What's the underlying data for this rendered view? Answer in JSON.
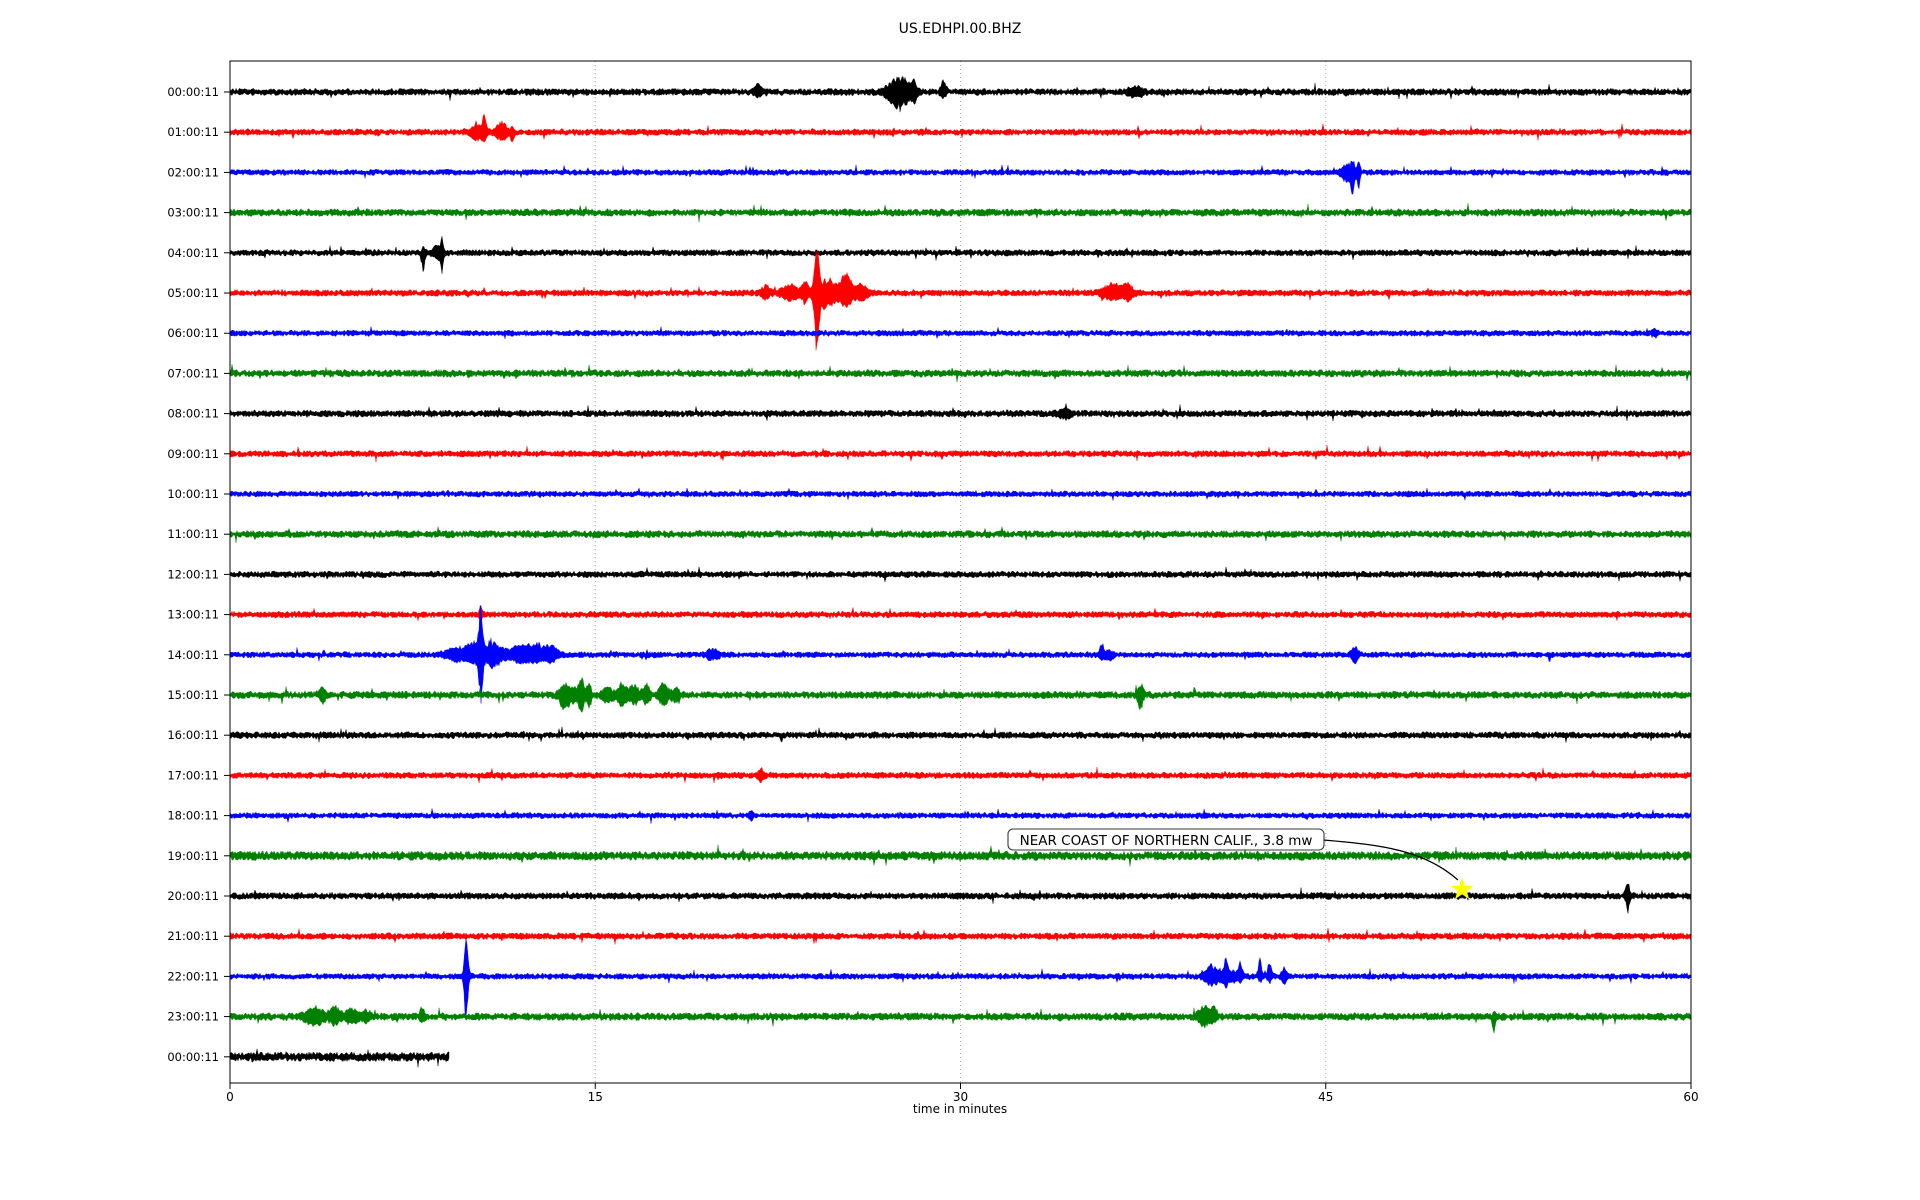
{
  "page": {
    "title": "US.EDHPI.00.BHZ"
  },
  "chart_data": {
    "type": "line",
    "subtype": "seismogram-dayplot",
    "title": "US.EDHPI.00.BHZ",
    "xlabel": "time in minutes",
    "xlim": [
      0,
      60
    ],
    "x_ticks": [
      0,
      15,
      30,
      45,
      60
    ],
    "grid_minutes": [
      15,
      30,
      45
    ],
    "grid_on": true,
    "grid_color": "#aaaaaa",
    "trace_color_cycle": [
      "#000000",
      "#ff0000",
      "#0000ff",
      "#008000"
    ],
    "annotation": {
      "text": "NEAR COAST OF NORTHERN CALIF., 3.8 mw",
      "row_index": 20,
      "row_label": "20:00:11",
      "minute": 50.6,
      "marker": "star",
      "marker_color": "#ffff00"
    },
    "rows": [
      {
        "label": "00:00:11",
        "start": 0,
        "end": 60,
        "n": 3.4,
        "events": [
          {
            "t": 21.7,
            "d": 0.15,
            "u": 7,
            "dn": 5
          },
          {
            "t": 27.5,
            "d": 0.5,
            "u": 16,
            "dn": 17
          },
          {
            "t": 28.1,
            "d": 0.1,
            "u": 10,
            "dn": 8
          },
          {
            "t": 29.3,
            "d": 0.12,
            "u": 13,
            "dn": 6
          },
          {
            "t": 37.2,
            "d": 0.3,
            "u": 5,
            "dn": 5
          }
        ]
      },
      {
        "label": "01:00:11",
        "start": 0,
        "end": 60,
        "n": 3.2,
        "events": [
          {
            "t": 10.2,
            "d": 0.35,
            "u": 8,
            "dn": 7
          },
          {
            "t": 10.45,
            "d": 0.08,
            "u": 14,
            "dn": 5
          },
          {
            "t": 11.15,
            "d": 0.25,
            "u": 10,
            "dn": 8
          },
          {
            "t": 11.6,
            "d": 0.07,
            "u": 4,
            "dn": 12
          }
        ]
      },
      {
        "label": "02:00:11",
        "start": 0,
        "end": 60,
        "n": 3.0,
        "events": [
          {
            "t": 45.9,
            "d": 0.3,
            "u": 7,
            "dn": 9
          },
          {
            "t": 46.1,
            "d": 0.08,
            "u": 6,
            "dn": 16
          },
          {
            "t": 46.35,
            "d": 0.07,
            "u": 10,
            "dn": 16
          }
        ]
      },
      {
        "label": "03:00:11",
        "start": 0,
        "end": 60,
        "n": 3.6,
        "events": []
      },
      {
        "label": "04:00:11",
        "start": 0,
        "end": 60,
        "n": 3.2,
        "events": [
          {
            "t": 7.95,
            "d": 0.07,
            "u": 5,
            "dn": 19
          },
          {
            "t": 8.5,
            "d": 0.25,
            "u": 6,
            "dn": 5
          },
          {
            "t": 8.7,
            "d": 0.07,
            "u": 11,
            "dn": 17
          }
        ]
      },
      {
        "label": "05:00:11",
        "start": 0,
        "end": 60,
        "n": 3.2,
        "events": [
          {
            "t": 22.0,
            "d": 0.2,
            "u": 7,
            "dn": 6
          },
          {
            "t": 23.0,
            "d": 0.4,
            "u": 8,
            "dn": 7
          },
          {
            "t": 23.6,
            "d": 0.15,
            "u": 12,
            "dn": 8
          },
          {
            "t": 24.1,
            "d": 0.12,
            "u": 44,
            "dn": 52
          },
          {
            "t": 24.5,
            "d": 0.5,
            "u": 12,
            "dn": 16
          },
          {
            "t": 25.3,
            "d": 0.25,
            "u": 20,
            "dn": 14
          },
          {
            "t": 25.9,
            "d": 0.3,
            "u": 8,
            "dn": 8
          },
          {
            "t": 36.3,
            "d": 0.5,
            "u": 9,
            "dn": 7
          },
          {
            "t": 36.9,
            "d": 0.2,
            "u": 8,
            "dn": 6
          }
        ]
      },
      {
        "label": "06:00:11",
        "start": 0,
        "end": 60,
        "n": 3.0,
        "events": [
          {
            "t": 58.5,
            "d": 0.1,
            "u": 4,
            "dn": 4
          }
        ]
      },
      {
        "label": "07:00:11",
        "start": 0,
        "end": 60,
        "n": 3.6,
        "events": []
      },
      {
        "label": "08:00:11",
        "start": 0,
        "end": 60,
        "n": 3.4,
        "events": [
          {
            "t": 34.3,
            "d": 0.3,
            "u": 4,
            "dn": 4
          }
        ]
      },
      {
        "label": "09:00:11",
        "start": 0,
        "end": 60,
        "n": 3.2,
        "events": []
      },
      {
        "label": "10:00:11",
        "start": 0,
        "end": 60,
        "n": 3.0,
        "events": []
      },
      {
        "label": "11:00:11",
        "start": 0,
        "end": 60,
        "n": 3.6,
        "events": []
      },
      {
        "label": "12:00:11",
        "start": 0,
        "end": 60,
        "n": 3.2,
        "events": []
      },
      {
        "label": "13:00:11",
        "start": 0,
        "end": 60,
        "n": 3.2,
        "events": [
          {
            "t": 10.3,
            "d": 0.07,
            "u": 9,
            "dn": 4
          }
        ]
      },
      {
        "label": "14:00:11",
        "start": 0,
        "end": 60,
        "n": 3.0,
        "events": [
          {
            "t": 9.3,
            "d": 0.5,
            "u": 7,
            "dn": 6
          },
          {
            "t": 10.0,
            "d": 0.3,
            "u": 12,
            "dn": 8
          },
          {
            "t": 10.3,
            "d": 0.1,
            "u": 50,
            "dn": 46
          },
          {
            "t": 10.8,
            "d": 0.4,
            "u": 12,
            "dn": 12
          },
          {
            "t": 11.8,
            "d": 0.5,
            "u": 6,
            "dn": 6
          },
          {
            "t": 12.5,
            "d": 0.5,
            "u": 10,
            "dn": 7
          },
          {
            "t": 13.2,
            "d": 0.3,
            "u": 8,
            "dn": 6
          },
          {
            "t": 19.8,
            "d": 0.3,
            "u": 5,
            "dn": 4
          },
          {
            "t": 35.8,
            "d": 0.1,
            "u": 11,
            "dn": 5
          },
          {
            "t": 36.1,
            "d": 0.15,
            "u": 5,
            "dn": 7
          },
          {
            "t": 46.2,
            "d": 0.15,
            "u": 9,
            "dn": 8
          }
        ]
      },
      {
        "label": "15:00:11",
        "start": 0,
        "end": 60,
        "n": 3.6,
        "events": [
          {
            "t": 3.8,
            "d": 0.15,
            "u": 7,
            "dn": 7
          },
          {
            "t": 13.7,
            "d": 0.2,
            "u": 10,
            "dn": 12
          },
          {
            "t": 14.1,
            "d": 0.3,
            "u": 8,
            "dn": 8
          },
          {
            "t": 14.45,
            "d": 0.12,
            "u": 16,
            "dn": 18
          },
          {
            "t": 14.75,
            "d": 0.1,
            "u": 12,
            "dn": 14
          },
          {
            "t": 15.5,
            "d": 0.3,
            "u": 6,
            "dn": 6
          },
          {
            "t": 16.1,
            "d": 0.2,
            "u": 10,
            "dn": 12
          },
          {
            "t": 16.6,
            "d": 0.3,
            "u": 8,
            "dn": 8
          },
          {
            "t": 17.1,
            "d": 0.15,
            "u": 10,
            "dn": 10
          },
          {
            "t": 17.8,
            "d": 0.2,
            "u": 12,
            "dn": 10
          },
          {
            "t": 18.3,
            "d": 0.2,
            "u": 6,
            "dn": 6
          },
          {
            "t": 37.4,
            "d": 0.12,
            "u": 12,
            "dn": 14
          }
        ]
      },
      {
        "label": "16:00:11",
        "start": 0,
        "end": 60,
        "n": 3.3,
        "events": []
      },
      {
        "label": "17:00:11",
        "start": 0,
        "end": 60,
        "n": 3.2,
        "events": [
          {
            "t": 21.8,
            "d": 0.15,
            "u": 6,
            "dn": 5
          }
        ]
      },
      {
        "label": "18:00:11",
        "start": 0,
        "end": 60,
        "n": 3.0,
        "events": [
          {
            "t": 21.4,
            "d": 0.1,
            "u": 5,
            "dn": 4
          }
        ]
      },
      {
        "label": "19:00:11",
        "start": 0,
        "end": 60,
        "n": 4.4,
        "events": []
      },
      {
        "label": "20:00:11",
        "start": 0,
        "end": 60,
        "n": 3.4,
        "events": [
          {
            "t": 57.4,
            "d": 0.1,
            "u": 13,
            "dn": 14
          }
        ]
      },
      {
        "label": "21:00:11",
        "start": 0,
        "end": 60,
        "n": 3.3,
        "events": []
      },
      {
        "label": "22:00:11",
        "start": 0,
        "end": 60,
        "n": 3.0,
        "events": [
          {
            "t": 9.7,
            "d": 0.1,
            "u": 40,
            "dn": 44
          },
          {
            "t": 40.3,
            "d": 0.3,
            "u": 10,
            "dn": 8
          },
          {
            "t": 40.9,
            "d": 0.08,
            "u": 15,
            "dn": 5
          },
          {
            "t": 41.0,
            "d": 0.5,
            "u": 6,
            "dn": 6
          },
          {
            "t": 41.5,
            "d": 0.08,
            "u": 14,
            "dn": 5
          },
          {
            "t": 42.3,
            "d": 0.08,
            "u": 18,
            "dn": 6
          },
          {
            "t": 42.7,
            "d": 0.1,
            "u": 15,
            "dn": 6
          },
          {
            "t": 43.3,
            "d": 0.12,
            "u": 9,
            "dn": 7
          }
        ]
      },
      {
        "label": "23:00:11",
        "start": 0,
        "end": 60,
        "n": 3.8,
        "events": [
          {
            "t": 3.5,
            "d": 0.4,
            "u": 8,
            "dn": 8
          },
          {
            "t": 4.3,
            "d": 0.25,
            "u": 9,
            "dn": 7
          },
          {
            "t": 5.0,
            "d": 0.3,
            "u": 7,
            "dn": 6
          },
          {
            "t": 5.6,
            "d": 0.2,
            "u": 6,
            "dn": 5
          },
          {
            "t": 7.9,
            "d": 0.1,
            "u": 9,
            "dn": 5
          },
          {
            "t": 40.0,
            "d": 0.25,
            "u": 10,
            "dn": 9
          },
          {
            "t": 40.4,
            "d": 0.15,
            "u": 8,
            "dn": 6
          },
          {
            "t": 51.9,
            "d": 0.06,
            "u": 3,
            "dn": 24
          }
        ]
      },
      {
        "label": "00:00:11",
        "start": 0,
        "end": 9.0,
        "n": 4.6,
        "events": []
      }
    ]
  }
}
